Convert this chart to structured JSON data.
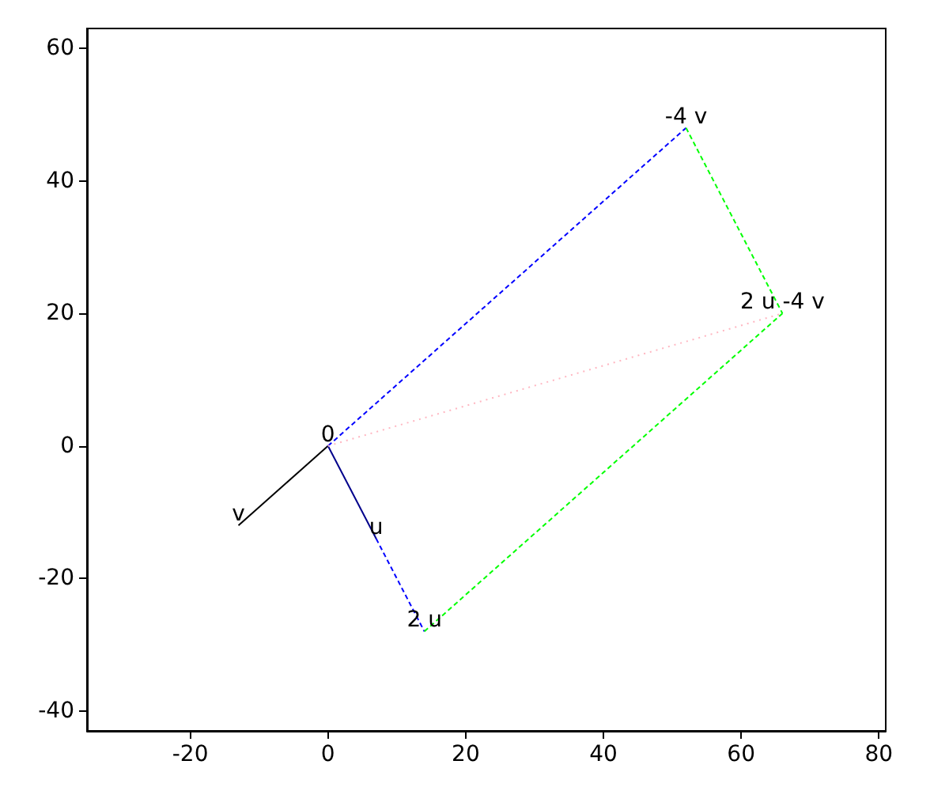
{
  "chart_data": {
    "type": "line",
    "xlim": [
      -35,
      81
    ],
    "ylim": [
      -43,
      63
    ],
    "xticks": [
      -20,
      0,
      20,
      40,
      60,
      80
    ],
    "yticks": [
      -40,
      -20,
      0,
      20,
      40,
      60
    ],
    "grid": false,
    "marker": "none",
    "series": [
      {
        "color": "#000000",
        "line_style": "solid",
        "x": [
          0,
          -13
        ],
        "values": [
          0,
          -12
        ]
      },
      {
        "color": "#00008b",
        "line_style": "solid",
        "x": [
          0,
          7
        ],
        "values": [
          0,
          -14
        ]
      },
      {
        "color": "#0000ff",
        "line_style": "dashed",
        "x": [
          7,
          14
        ],
        "values": [
          -14,
          -28
        ]
      },
      {
        "color": "#0000ff",
        "line_style": "dashed",
        "x": [
          0,
          52
        ],
        "values": [
          0,
          48
        ]
      },
      {
        "color": "#00ff00",
        "line_style": "dashed",
        "x": [
          14,
          66
        ],
        "values": [
          -28,
          20
        ]
      },
      {
        "color": "#00ff00",
        "line_style": "dashed",
        "x": [
          52,
          66
        ],
        "values": [
          48,
          20
        ]
      },
      {
        "color": "#ffb6c1",
        "line_style": "dotted",
        "x": [
          0,
          66
        ],
        "values": [
          0,
          20
        ]
      }
    ],
    "annotations": [
      {
        "text": "0",
        "x": 0,
        "y": 0
      },
      {
        "text": "v",
        "x": -13,
        "y": -12
      },
      {
        "text": "u",
        "x": 7,
        "y": -14
      },
      {
        "text": "2 u",
        "x": 14,
        "y": -28
      },
      {
        "text": "-4 v",
        "x": 52,
        "y": 48
      },
      {
        "text": "2 u -4 v",
        "x": 66,
        "y": 20
      }
    ]
  }
}
